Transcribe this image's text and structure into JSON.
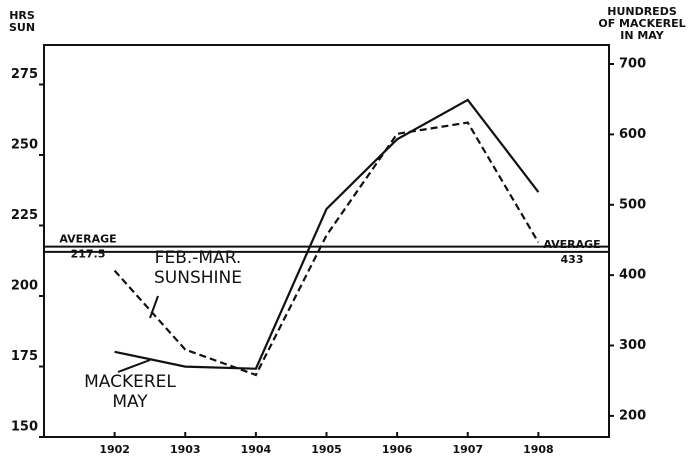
{
  "chart_data": {
    "type": "line",
    "ylabel": [
      "HRS",
      "SUN"
    ],
    "y2label": [
      "HUNDREDS",
      "OF MACKEREL",
      "IN MAY"
    ],
    "x": [
      1902,
      1903,
      1904,
      1905,
      1906,
      1907,
      1908
    ],
    "xlim": [
      1901,
      1909
    ],
    "xticks": [
      1902,
      1903,
      1904,
      1905,
      1906,
      1907,
      1908
    ],
    "ylim": [
      150,
      289
    ],
    "yticks": [
      150,
      175,
      200,
      225,
      250,
      275
    ],
    "y2lim": [
      170,
      727
    ],
    "y2ticks": [
      200,
      300,
      400,
      500,
      600,
      700
    ],
    "series": [
      {
        "name": "FEB.-MAR. SUNSHINE",
        "color": "#111111",
        "dash": true,
        "axis": "y",
        "values": [
          209,
          181,
          172,
          221.5,
          257.5,
          261.5,
          219
        ]
      },
      {
        "name": "MACKEREL MAY",
        "color": "#111111",
        "dash": false,
        "axis": "y2",
        "values": [
          291,
          270,
          267,
          494,
          593,
          649,
          518
        ]
      }
    ],
    "average_lines": [
      {
        "label": "AVERAGE",
        "value_label": "217.5",
        "value": 217.5,
        "axis": "y"
      },
      {
        "label": "AVERAGE",
        "value_label": "433",
        "value": 433,
        "axis": "y2"
      }
    ]
  }
}
